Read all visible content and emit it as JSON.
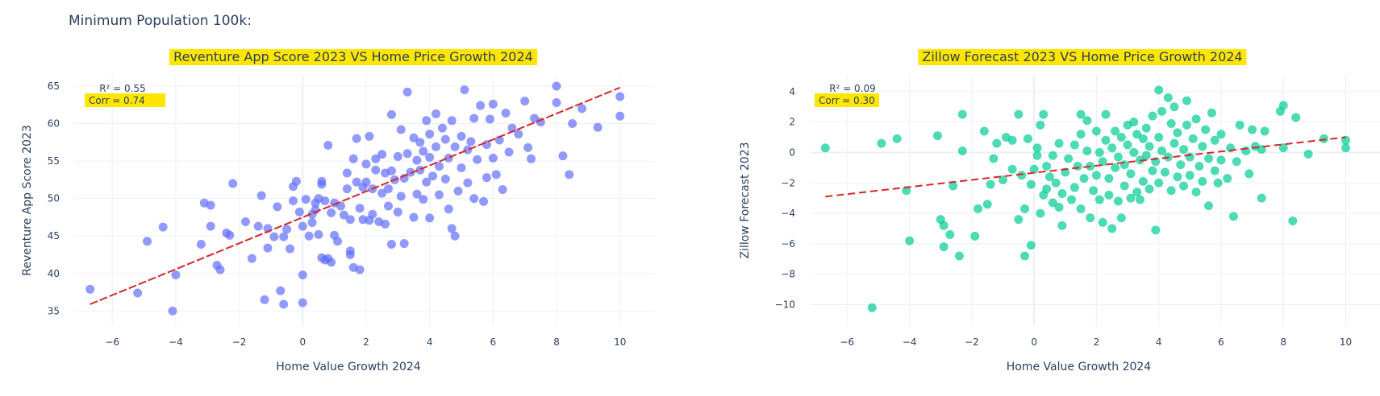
{
  "page": {
    "title": "Minimum Population 100k:"
  },
  "colors": {
    "left_marker": "#636efa",
    "right_marker": "#00cc96",
    "trend": "#d62728",
    "highlight": "#ffe600",
    "grid": "#ebf0f8",
    "text": "#2a3f5f"
  },
  "chart_data": [
    {
      "type": "scatter",
      "title": "Reventure App Score 2023 VS Home Price Growth 2024",
      "xlabel": "Home Value Growth 2024",
      "ylabel": "Reventure App Score 2023",
      "xlim": [
        -7.2,
        11.1
      ],
      "ylim": [
        33,
        66.5
      ],
      "xticks": [
        -6,
        -4,
        -2,
        0,
        2,
        4,
        6,
        8,
        10
      ],
      "yticks": [
        35,
        40,
        45,
        50,
        55,
        60,
        65
      ],
      "grid": true,
      "annotations": {
        "r2": "R² = 0.55",
        "corr": "Corr = 0.74"
      },
      "trendline": {
        "x": [
          -6.7,
          10.0
        ],
        "y": [
          35.9,
          64.8
        ],
        "style": "dashed"
      },
      "points": [
        [
          -6.7,
          37.9
        ],
        [
          -5.2,
          37.4
        ],
        [
          -4.9,
          44.3
        ],
        [
          -4.4,
          46.2
        ],
        [
          -4.1,
          35.0
        ],
        [
          -4.0,
          39.8
        ],
        [
          -3.2,
          43.9
        ],
        [
          -3.1,
          49.4
        ],
        [
          -2.9,
          49.1
        ],
        [
          -2.9,
          46.3
        ],
        [
          -2.7,
          41.1
        ],
        [
          -2.6,
          40.5
        ],
        [
          -2.4,
          45.4
        ],
        [
          -2.3,
          45.1
        ],
        [
          -2.2,
          52.0
        ],
        [
          -1.8,
          46.9
        ],
        [
          -1.6,
          42.0
        ],
        [
          -1.4,
          46.3
        ],
        [
          -1.3,
          50.4
        ],
        [
          -1.2,
          36.5
        ],
        [
          -1.1,
          43.4
        ],
        [
          -1.1,
          46.0
        ],
        [
          -0.9,
          44.9
        ],
        [
          -0.8,
          48.9
        ],
        [
          -0.7,
          37.7
        ],
        [
          -0.6,
          35.9
        ],
        [
          -0.6,
          44.9
        ],
        [
          -0.5,
          45.9
        ],
        [
          -0.4,
          43.3
        ],
        [
          -0.3,
          51.6
        ],
        [
          -0.3,
          49.7
        ],
        [
          -0.2,
          52.3
        ],
        [
          -0.1,
          48.2
        ],
        [
          0.0,
          39.8
        ],
        [
          0.0,
          36.1
        ],
        [
          0.0,
          46.3
        ],
        [
          0.1,
          49.9
        ],
        [
          0.2,
          45.0
        ],
        [
          0.3,
          46.8
        ],
        [
          0.3,
          47.9
        ],
        [
          0.4,
          48.5
        ],
        [
          0.4,
          49.4
        ],
        [
          0.5,
          45.2
        ],
        [
          0.5,
          50.0
        ],
        [
          0.6,
          51.9
        ],
        [
          0.6,
          52.3
        ],
        [
          0.6,
          42.1
        ],
        [
          0.7,
          41.8
        ],
        [
          0.7,
          49.7
        ],
        [
          0.8,
          42.0
        ],
        [
          0.8,
          57.1
        ],
        [
          0.9,
          41.5
        ],
        [
          0.9,
          48.1
        ],
        [
          1.0,
          45.1
        ],
        [
          1.0,
          49.4
        ],
        [
          1.1,
          44.3
        ],
        [
          1.2,
          49.0
        ],
        [
          1.3,
          47.8
        ],
        [
          1.4,
          51.3
        ],
        [
          1.4,
          53.4
        ],
        [
          1.5,
          43.0
        ],
        [
          1.5,
          47.2
        ],
        [
          1.5,
          42.5
        ],
        [
          1.6,
          55.3
        ],
        [
          1.6,
          40.8
        ],
        [
          1.7,
          52.2
        ],
        [
          1.7,
          58.0
        ],
        [
          1.8,
          40.5
        ],
        [
          1.8,
          48.7
        ],
        [
          1.9,
          47.2
        ],
        [
          1.9,
          51.5
        ],
        [
          2.0,
          54.6
        ],
        [
          2.0,
          52.2
        ],
        [
          2.1,
          58.3
        ],
        [
          2.1,
          47.1
        ],
        [
          2.2,
          47.9
        ],
        [
          2.2,
          51.3
        ],
        [
          2.3,
          53.8
        ],
        [
          2.3,
          55.3
        ],
        [
          2.4,
          46.9
        ],
        [
          2.5,
          50.7
        ],
        [
          2.5,
          55.9
        ],
        [
          2.6,
          53.4
        ],
        [
          2.6,
          46.6
        ],
        [
          2.7,
          51.3
        ],
        [
          2.7,
          49.0
        ],
        [
          2.8,
          53.7
        ],
        [
          2.8,
          43.9
        ],
        [
          2.8,
          61.2
        ],
        [
          2.9,
          52.5
        ],
        [
          3.0,
          48.2
        ],
        [
          3.0,
          55.6
        ],
        [
          3.1,
          59.2
        ],
        [
          3.1,
          50.3
        ],
        [
          3.2,
          52.7
        ],
        [
          3.2,
          44.0
        ],
        [
          3.3,
          64.2
        ],
        [
          3.3,
          56.0
        ],
        [
          3.4,
          53.5
        ],
        [
          3.5,
          47.5
        ],
        [
          3.5,
          58.1
        ],
        [
          3.6,
          55.1
        ],
        [
          3.6,
          50.6
        ],
        [
          3.7,
          53.8
        ],
        [
          3.7,
          57.5
        ],
        [
          3.8,
          56.3
        ],
        [
          3.8,
          49.9
        ],
        [
          3.9,
          60.4
        ],
        [
          3.9,
          52.2
        ],
        [
          4.0,
          47.4
        ],
        [
          4.0,
          55.5
        ],
        [
          4.0,
          58.6
        ],
        [
          4.1,
          53.0
        ],
        [
          4.2,
          56.9
        ],
        [
          4.2,
          61.3
        ],
        [
          4.3,
          50.5
        ],
        [
          4.3,
          54.3
        ],
        [
          4.4,
          59.4
        ],
        [
          4.5,
          57.9
        ],
        [
          4.5,
          52.6
        ],
        [
          4.6,
          55.4
        ],
        [
          4.6,
          48.6
        ],
        [
          4.7,
          46.0
        ],
        [
          4.7,
          60.4
        ],
        [
          4.8,
          45.0
        ],
        [
          4.8,
          56.9
        ],
        [
          4.9,
          51.0
        ],
        [
          5.0,
          54.1
        ],
        [
          5.0,
          58.3
        ],
        [
          5.1,
          64.5
        ],
        [
          5.2,
          56.5
        ],
        [
          5.2,
          52.1
        ],
        [
          5.3,
          57.6
        ],
        [
          5.4,
          50.0
        ],
        [
          5.4,
          60.7
        ],
        [
          5.5,
          55.2
        ],
        [
          5.6,
          62.4
        ],
        [
          5.7,
          49.6
        ],
        [
          5.8,
          52.8
        ],
        [
          5.8,
          57.2
        ],
        [
          5.9,
          60.6
        ],
        [
          6.0,
          62.6
        ],
        [
          6.0,
          55.4
        ],
        [
          6.1,
          53.2
        ],
        [
          6.2,
          57.8
        ],
        [
          6.3,
          51.2
        ],
        [
          6.4,
          61.4
        ],
        [
          6.5,
          56.2
        ],
        [
          6.6,
          59.4
        ],
        [
          6.8,
          58.6
        ],
        [
          7.0,
          63.0
        ],
        [
          7.1,
          56.8
        ],
        [
          7.2,
          55.3
        ],
        [
          7.3,
          60.7
        ],
        [
          7.5,
          60.2
        ],
        [
          8.0,
          65.0
        ],
        [
          8.0,
          62.8
        ],
        [
          8.2,
          55.7
        ],
        [
          8.4,
          53.2
        ],
        [
          8.5,
          60.0
        ],
        [
          8.8,
          62.0
        ],
        [
          9.3,
          59.5
        ],
        [
          10.0,
          63.6
        ],
        [
          10.0,
          61.0
        ]
      ]
    },
    {
      "type": "scatter",
      "title": "Zillow Forecast 2023 VS Home Price Growth 2024",
      "xlabel": "Home Value Growth 2024",
      "ylabel": "Zillow Forecast 2023",
      "xlim": [
        -7.2,
        11.1
      ],
      "ylim": [
        -11.4,
        5.1
      ],
      "xticks": [
        -6,
        -4,
        -2,
        0,
        2,
        4,
        6,
        8,
        10
      ],
      "yticks": [
        -10,
        -8,
        -6,
        -4,
        -2,
        0,
        2,
        4
      ],
      "grid": true,
      "annotations": {
        "r2": "R² = 0.09",
        "corr": "Corr = 0.30"
      },
      "trendline": {
        "x": [
          -6.7,
          10.0
        ],
        "y": [
          -2.9,
          1.0
        ],
        "style": "dashed"
      },
      "points": [
        [
          -6.7,
          0.3
        ],
        [
          -5.2,
          -10.2
        ],
        [
          -4.9,
          0.6
        ],
        [
          -4.4,
          0.9
        ],
        [
          -4.1,
          -2.5
        ],
        [
          -4.0,
          -5.8
        ],
        [
          -3.1,
          1.1
        ],
        [
          -3.0,
          -4.4
        ],
        [
          -2.9,
          -4.8
        ],
        [
          -2.9,
          -6.2
        ],
        [
          -2.7,
          -5.4
        ],
        [
          -2.6,
          -2.2
        ],
        [
          -2.4,
          -6.8
        ],
        [
          -2.3,
          2.5
        ],
        [
          -2.3,
          0.1
        ],
        [
          -1.9,
          -5.5
        ],
        [
          -1.8,
          -3.7
        ],
        [
          -1.6,
          1.4
        ],
        [
          -1.5,
          -3.4
        ],
        [
          -1.4,
          -2.1
        ],
        [
          -1.3,
          -0.4
        ],
        [
          -1.2,
          0.6
        ],
        [
          -1.0,
          -1.8
        ],
        [
          -0.9,
          1.0
        ],
        [
          -0.7,
          -1.1
        ],
        [
          -0.7,
          0.8
        ],
        [
          -0.5,
          2.5
        ],
        [
          -0.5,
          -4.4
        ],
        [
          -0.4,
          -1.5
        ],
        [
          -0.3,
          -6.8
        ],
        [
          -0.3,
          -3.7
        ],
        [
          -0.2,
          0.9
        ],
        [
          -0.1,
          -6.1
        ],
        [
          -0.1,
          -2.1
        ],
        [
          0.0,
          -1.1
        ],
        [
          0.1,
          0.3
        ],
        [
          0.1,
          -0.2
        ],
        [
          0.2,
          -4.0
        ],
        [
          0.2,
          1.8
        ],
        [
          0.3,
          2.5
        ],
        [
          0.3,
          -2.8
        ],
        [
          0.4,
          -0.9
        ],
        [
          0.4,
          -2.4
        ],
        [
          0.5,
          -1.6
        ],
        [
          0.6,
          -0.2
        ],
        [
          0.6,
          -3.3
        ],
        [
          0.7,
          -2.0
        ],
        [
          0.8,
          0.6
        ],
        [
          0.8,
          -3.6
        ],
        [
          0.9,
          -2.7
        ],
        [
          0.9,
          -4.8
        ],
        [
          1.0,
          -1.3
        ],
        [
          1.1,
          -0.4
        ],
        [
          1.2,
          -3.1
        ],
        [
          1.3,
          0.5
        ],
        [
          1.3,
          -2.3
        ],
        [
          1.4,
          -0.9
        ],
        [
          1.5,
          1.2
        ],
        [
          1.5,
          -3.7
        ],
        [
          1.5,
          2.5
        ],
        [
          1.6,
          -1.7
        ],
        [
          1.7,
          0.1
        ],
        [
          1.7,
          2.1
        ],
        [
          1.8,
          -4.3
        ],
        [
          1.8,
          -0.9
        ],
        [
          1.9,
          -2.5
        ],
        [
          2.0,
          1.4
        ],
        [
          2.0,
          -1.5
        ],
        [
          2.1,
          -3.1
        ],
        [
          2.1,
          0.0
        ],
        [
          2.2,
          -4.6
        ],
        [
          2.2,
          -0.6
        ],
        [
          2.3,
          0.8
        ],
        [
          2.3,
          2.5
        ],
        [
          2.4,
          -1.7
        ],
        [
          2.4,
          -2.8
        ],
        [
          2.5,
          -5.0
        ],
        [
          2.5,
          0.3
        ],
        [
          2.6,
          -1.0
        ],
        [
          2.6,
          1.4
        ],
        [
          2.7,
          -3.2
        ],
        [
          2.7,
          -0.3
        ],
        [
          2.8,
          -4.3
        ],
        [
          2.8,
          1.0
        ],
        [
          2.9,
          -2.2
        ],
        [
          2.9,
          -0.8
        ],
        [
          3.0,
          0.5
        ],
        [
          3.0,
          1.8
        ],
        [
          3.1,
          -3.0
        ],
        [
          3.1,
          -1.4
        ],
        [
          3.2,
          0.0
        ],
        [
          3.2,
          2.0
        ],
        [
          3.3,
          -2.6
        ],
        [
          3.3,
          1.2
        ],
        [
          3.4,
          -0.5
        ],
        [
          3.4,
          -3.1
        ],
        [
          3.5,
          0.9
        ],
        [
          3.5,
          -1.9
        ],
        [
          3.6,
          -0.2
        ],
        [
          3.6,
          1.6
        ],
        [
          3.7,
          -2.4
        ],
        [
          3.7,
          0.4
        ],
        [
          3.8,
          2.4
        ],
        [
          3.8,
          -1.2
        ],
        [
          3.9,
          -5.1
        ],
        [
          3.9,
          -0.6
        ],
        [
          4.0,
          4.1
        ],
        [
          4.0,
          1.0
        ],
        [
          4.0,
          -2.0
        ],
        [
          4.1,
          0.1
        ],
        [
          4.1,
          2.7
        ],
        [
          4.2,
          -1.3
        ],
        [
          4.3,
          3.6
        ],
        [
          4.3,
          -0.3
        ],
        [
          4.4,
          1.9
        ],
        [
          4.4,
          -2.5
        ],
        [
          4.5,
          0.6
        ],
        [
          4.5,
          3.0
        ],
        [
          4.6,
          -1.6
        ],
        [
          4.6,
          1.3
        ],
        [
          4.7,
          -0.8
        ],
        [
          4.8,
          0.2
        ],
        [
          4.8,
          -2.2
        ],
        [
          4.9,
          3.4
        ],
        [
          4.9,
          1.8
        ],
        [
          5.0,
          -0.3
        ],
        [
          5.0,
          -1.5
        ],
        [
          5.1,
          0.9
        ],
        [
          5.2,
          -2.6
        ],
        [
          5.2,
          2.2
        ],
        [
          5.3,
          -0.9
        ],
        [
          5.4,
          0.4
        ],
        [
          5.4,
          -1.9
        ],
        [
          5.5,
          1.5
        ],
        [
          5.6,
          -3.5
        ],
        [
          5.6,
          -0.4
        ],
        [
          5.7,
          2.6
        ],
        [
          5.8,
          -1.2
        ],
        [
          5.8,
          0.8
        ],
        [
          5.9,
          -2.0
        ],
        [
          6.0,
          -0.5
        ],
        [
          6.0,
          1.2
        ],
        [
          6.2,
          -1.7
        ],
        [
          6.3,
          0.3
        ],
        [
          6.4,
          -4.2
        ],
        [
          6.5,
          -0.6
        ],
        [
          6.6,
          1.8
        ],
        [
          6.8,
          0.1
        ],
        [
          6.9,
          -1.4
        ],
        [
          7.0,
          1.5
        ],
        [
          7.1,
          0.4
        ],
        [
          7.3,
          -3.0
        ],
        [
          7.3,
          0.2
        ],
        [
          7.4,
          1.4
        ],
        [
          7.9,
          2.7
        ],
        [
          8.0,
          3.1
        ],
        [
          8.0,
          0.3
        ],
        [
          8.3,
          -4.5
        ],
        [
          8.4,
          2.3
        ],
        [
          8.8,
          -0.1
        ],
        [
          9.3,
          0.9
        ],
        [
          10.0,
          0.8
        ],
        [
          10.0,
          0.3
        ]
      ]
    }
  ]
}
